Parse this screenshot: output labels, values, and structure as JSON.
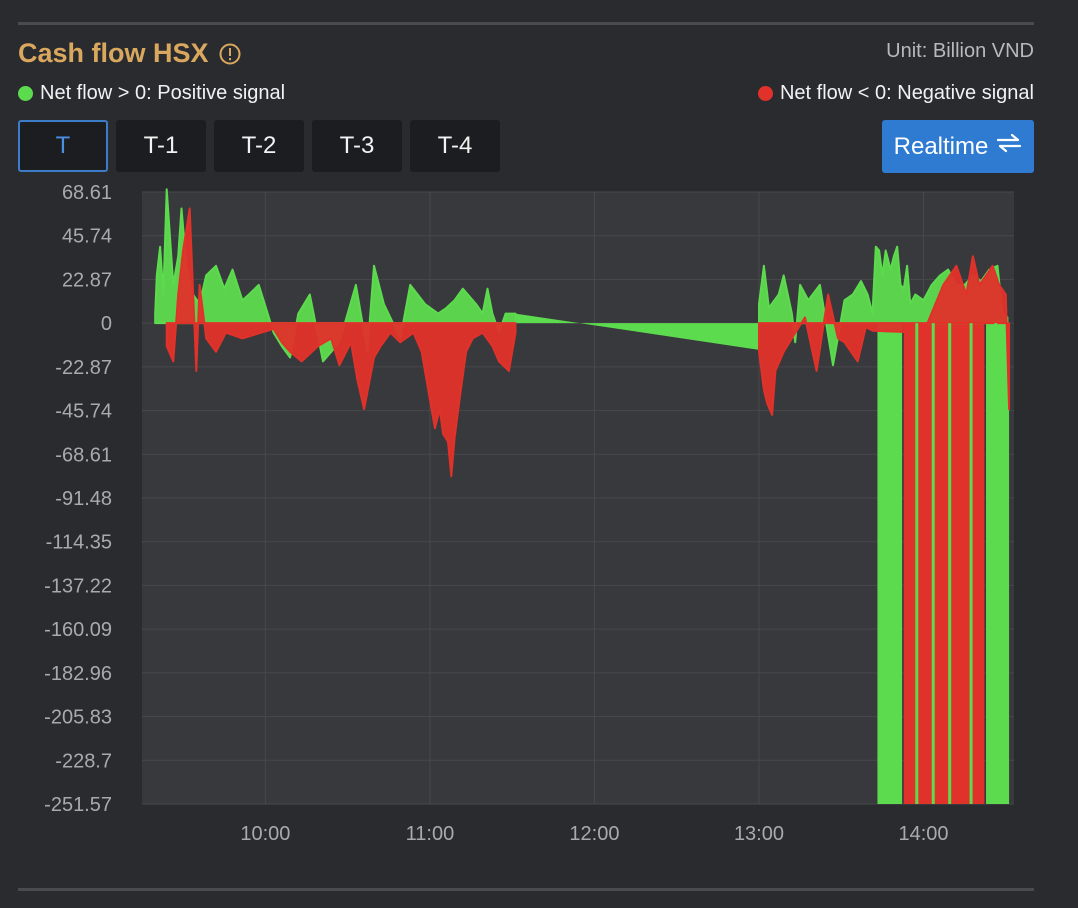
{
  "header": {
    "title": "Cash flow HSX",
    "unit": "Unit: Billion VND"
  },
  "legend": {
    "positive": "Net flow > 0: Positive signal",
    "negative": "Net flow < 0: Negative signal"
  },
  "tabs": [
    {
      "label": "T",
      "active": true
    },
    {
      "label": "T-1",
      "active": false
    },
    {
      "label": "T-2",
      "active": false
    },
    {
      "label": "T-3",
      "active": false
    },
    {
      "label": "T-4",
      "active": false
    }
  ],
  "realtime": {
    "label": "Realtime",
    "icon": "swap-arrows-icon"
  },
  "colors": {
    "positive": "#5ddb4e",
    "negative": "#e0322a",
    "title": "#d9a85e",
    "accent": "#2f7bd2"
  },
  "chart_data": {
    "type": "area",
    "title": "Cash flow HSX",
    "ylabel": "Billion VND",
    "xlabel": "",
    "ylim": [
      -251.57,
      68.61
    ],
    "xlim_hours": [
      9.25,
      14.55
    ],
    "y_ticks": [
      "68.61",
      "45.74",
      "22.87",
      "0",
      "-22.87",
      "-45.74",
      "-68.61",
      "-91.48",
      "-114.35",
      "-137.22",
      "-160.09",
      "-182.96",
      "-205.83",
      "-228.7",
      "-251.57"
    ],
    "x_ticks": [
      {
        "label": "10:00",
        "h": 10
      },
      {
        "label": "11:00",
        "h": 11
      },
      {
        "label": "12:00",
        "h": 12
      },
      {
        "label": "13:00",
        "h": 13
      },
      {
        "label": "14:00",
        "h": 14
      }
    ],
    "series": [
      {
        "name": "Positive net flow",
        "color": "#5ddb4e",
        "points": [
          [
            9.33,
            5
          ],
          [
            9.34,
            25
          ],
          [
            9.36,
            40
          ],
          [
            9.38,
            15
          ],
          [
            9.4,
            70
          ],
          [
            9.42,
            45
          ],
          [
            9.44,
            20
          ],
          [
            9.47,
            35
          ],
          [
            9.49,
            60
          ],
          [
            9.52,
            30
          ],
          [
            9.56,
            15
          ],
          [
            9.6,
            10
          ],
          [
            9.64,
            25
          ],
          [
            9.7,
            30
          ],
          [
            9.75,
            18
          ],
          [
            9.8,
            28
          ],
          [
            9.86,
            12
          ],
          [
            9.9,
            15
          ],
          [
            9.96,
            20
          ],
          [
            10.05,
            -5
          ],
          [
            10.1,
            -12
          ],
          [
            10.15,
            -18
          ],
          [
            10.2,
            5
          ],
          [
            10.27,
            15
          ],
          [
            10.35,
            -20
          ],
          [
            10.45,
            -10
          ],
          [
            10.55,
            20
          ],
          [
            10.62,
            -15
          ],
          [
            10.66,
            30
          ],
          [
            10.72,
            10
          ],
          [
            10.82,
            -8
          ],
          [
            10.88,
            20
          ],
          [
            10.97,
            10
          ],
          [
            11.05,
            5
          ],
          [
            11.1,
            8
          ],
          [
            11.15,
            12
          ],
          [
            11.2,
            18
          ],
          [
            11.28,
            10
          ],
          [
            11.32,
            5
          ],
          [
            11.35,
            18
          ],
          [
            11.38,
            5
          ],
          [
            11.42,
            -5
          ],
          [
            11.46,
            5
          ],
          [
            11.52,
            5
          ],
          [
            13.0,
            10
          ],
          [
            13.03,
            30
          ],
          [
            13.06,
            8
          ],
          [
            13.12,
            15
          ],
          [
            13.15,
            25
          ],
          [
            13.2,
            5
          ],
          [
            13.22,
            -10
          ],
          [
            13.25,
            20
          ],
          [
            13.3,
            12
          ],
          [
            13.37,
            20
          ],
          [
            13.45,
            -22
          ],
          [
            13.52,
            12
          ],
          [
            13.57,
            15
          ],
          [
            13.62,
            22
          ],
          [
            13.66,
            15
          ],
          [
            13.69,
            5
          ],
          [
            13.71,
            40
          ],
          [
            13.73,
            38
          ],
          [
            13.75,
            25
          ],
          [
            13.77,
            38
          ],
          [
            13.8,
            28
          ],
          [
            13.82,
            35
          ],
          [
            13.84,
            40
          ],
          [
            13.86,
            20
          ],
          [
            13.88,
            18
          ],
          [
            13.9,
            30
          ],
          [
            13.92,
            10
          ],
          [
            13.95,
            15
          ],
          [
            14.0,
            12
          ],
          [
            14.05,
            20
          ],
          [
            14.1,
            25
          ],
          [
            14.15,
            28
          ],
          [
            14.2,
            20
          ],
          [
            14.25,
            20
          ],
          [
            14.3,
            25
          ],
          [
            14.35,
            22
          ],
          [
            14.4,
            28
          ],
          [
            14.45,
            30
          ],
          [
            14.48,
            5
          ],
          [
            14.51,
            3
          ]
        ],
        "bands": [
          [
            13.72,
            13.87
          ],
          [
            14.38,
            14.52
          ]
        ]
      },
      {
        "name": "Negative net flow",
        "color": "#e0322a",
        "points": [
          [
            9.4,
            -12
          ],
          [
            9.44,
            -20
          ],
          [
            9.47,
            15
          ],
          [
            9.5,
            38
          ],
          [
            9.54,
            60
          ],
          [
            9.58,
            -25
          ],
          [
            9.6,
            20
          ],
          [
            9.64,
            -8
          ],
          [
            9.7,
            -15
          ],
          [
            9.76,
            -5
          ],
          [
            9.86,
            -8
          ],
          [
            10.05,
            -3
          ],
          [
            10.1,
            -10
          ],
          [
            10.15,
            -15
          ],
          [
            10.22,
            -20
          ],
          [
            10.32,
            -12
          ],
          [
            10.4,
            -8
          ],
          [
            10.45,
            -22
          ],
          [
            10.52,
            -10
          ],
          [
            10.56,
            -30
          ],
          [
            10.6,
            -45
          ],
          [
            10.66,
            -18
          ],
          [
            10.7,
            -12
          ],
          [
            10.76,
            -5
          ],
          [
            10.82,
            -10
          ],
          [
            10.9,
            -5
          ],
          [
            10.95,
            -15
          ],
          [
            11.0,
            -40
          ],
          [
            11.03,
            -55
          ],
          [
            11.06,
            -45
          ],
          [
            11.08,
            -58
          ],
          [
            11.11,
            -62
          ],
          [
            11.13,
            -80
          ],
          [
            11.15,
            -60
          ],
          [
            11.18,
            -40
          ],
          [
            11.22,
            -15
          ],
          [
            11.26,
            -8
          ],
          [
            11.32,
            -5
          ],
          [
            11.38,
            -12
          ],
          [
            11.42,
            -20
          ],
          [
            11.48,
            -25
          ],
          [
            11.52,
            -5
          ],
          [
            13.0,
            -15
          ],
          [
            13.03,
            -35
          ],
          [
            13.05,
            -42
          ],
          [
            13.08,
            -48
          ],
          [
            13.1,
            -25
          ],
          [
            13.15,
            -15
          ],
          [
            13.2,
            -8
          ],
          [
            13.28,
            3
          ],
          [
            13.35,
            -25
          ],
          [
            13.42,
            15
          ],
          [
            13.48,
            -8
          ],
          [
            13.52,
            -10
          ],
          [
            13.6,
            -20
          ],
          [
            13.65,
            -2
          ],
          [
            13.69,
            -4
          ],
          [
            14.0,
            -5
          ],
          [
            14.12,
            20
          ],
          [
            14.2,
            30
          ],
          [
            14.26,
            15
          ],
          [
            14.3,
            35
          ],
          [
            14.34,
            20
          ],
          [
            14.38,
            25
          ],
          [
            14.42,
            30
          ],
          [
            14.46,
            20
          ],
          [
            14.5,
            15
          ],
          [
            14.52,
            -45
          ]
        ],
        "bands": [
          [
            13.88,
            14.37
          ]
        ]
      }
    ]
  }
}
